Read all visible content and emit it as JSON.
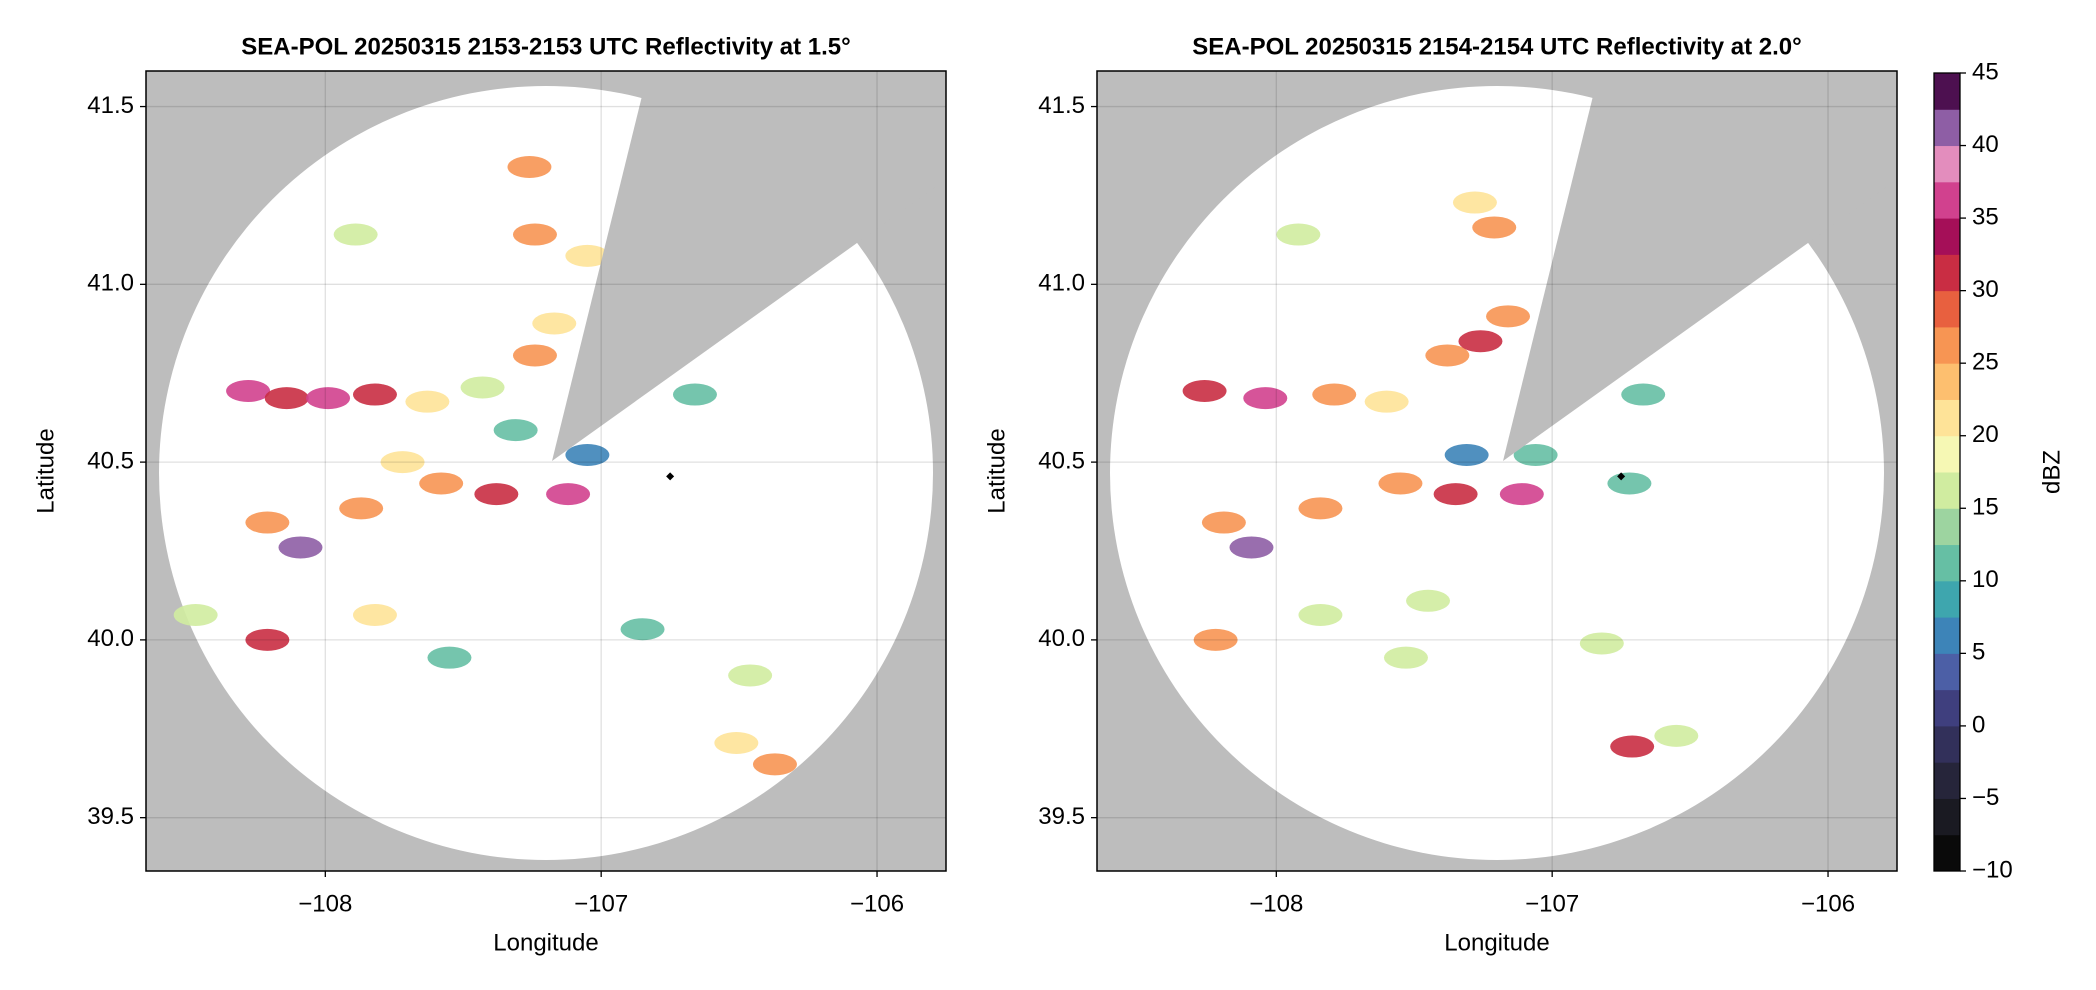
{
  "chart_data": [
    {
      "type": "scatter",
      "title": "SEA-POL 20250315 2153-2153 UTC Reflectivity at 1.5°",
      "xlabel": "Longitude",
      "ylabel": "Latitude",
      "xlim": [
        -108.65,
        -105.75
      ],
      "ylim": [
        39.35,
        41.6
      ],
      "xticks": [
        {
          "value": -108,
          "label": "−108"
        },
        {
          "value": -107,
          "label": "−107"
        },
        {
          "value": -106,
          "label": "−106"
        }
      ],
      "yticks": [
        39.5,
        {
          "value": 40,
          "label": "40.0"
        },
        40.5,
        {
          "value": 41,
          "label": "41.0"
        },
        41.5
      ],
      "grid": true,
      "x": [
        -108.28,
        -108.14,
        -107.99,
        -107.82,
        -107.63,
        -107.43,
        -107.24,
        -107.17,
        -107.24,
        -107.26,
        -107.05,
        -107.89,
        -108.09,
        -108.21,
        -107.87,
        -107.58,
        -107.38,
        -107.72,
        -107.12,
        -107.05,
        -107.31,
        -107.82,
        -108.21,
        -106.51,
        -106.37,
        -106.46,
        -106.85,
        -106.66,
        -107.55,
        -108.47
      ],
      "y": [
        40.7,
        40.68,
        40.68,
        40.69,
        40.67,
        40.71,
        40.8,
        40.89,
        41.14,
        41.33,
        41.08,
        41.14,
        40.26,
        40.33,
        40.37,
        40.44,
        40.41,
        40.5,
        40.41,
        40.52,
        40.59,
        40.07,
        40.0,
        39.71,
        39.65,
        39.9,
        40.03,
        40.69,
        39.95,
        40.07
      ],
      "values": [
        35,
        30,
        35,
        30,
        20,
        15,
        25,
        20,
        25,
        25,
        20,
        15,
        40,
        25,
        25,
        25,
        30,
        20,
        35,
        5,
        10,
        20,
        30,
        20,
        25,
        15,
        10,
        10,
        12,
        15
      ],
      "markers": {
        "x": [
          -106.75
        ],
        "y": [
          40.46
        ]
      }
    },
    {
      "type": "scatter",
      "title": "SEA-POL 20250315 2154-2154 UTC Reflectivity at 2.0°",
      "xlabel": "Longitude",
      "ylabel": "Latitude",
      "xlim": [
        -108.65,
        -105.75
      ],
      "ylim": [
        39.35,
        41.6
      ],
      "xticks": [
        {
          "value": -108,
          "label": "−108"
        },
        {
          "value": -107,
          "label": "−107"
        },
        {
          "value": -106,
          "label": "−106"
        }
      ],
      "yticks": [
        39.5,
        {
          "value": 40,
          "label": "40.0"
        },
        40.5,
        {
          "value": 41,
          "label": "41.0"
        },
        41.5
      ],
      "grid": true,
      "x": [
        -108.26,
        -108.04,
        -107.79,
        -107.6,
        -107.38,
        -107.26,
        -107.16,
        -107.28,
        -107.21,
        -107.92,
        -108.09,
        -108.19,
        -107.84,
        -107.55,
        -107.35,
        -107.11,
        -107.06,
        -107.31,
        -107.53,
        -107.84,
        -107.45,
        -106.82,
        -106.55,
        -106.71,
        -106.72,
        -106.67,
        -108.22
      ],
      "y": [
        40.7,
        40.68,
        40.69,
        40.67,
        40.8,
        40.84,
        40.91,
        41.23,
        41.16,
        41.14,
        40.26,
        40.33,
        40.37,
        40.44,
        40.41,
        40.41,
        40.52,
        40.52,
        39.95,
        40.07,
        40.11,
        39.99,
        39.73,
        39.7,
        40.44,
        40.69,
        40.0
      ],
      "values": [
        30,
        35,
        25,
        20,
        25,
        30,
        25,
        20,
        25,
        15,
        40,
        25,
        25,
        25,
        30,
        35,
        10,
        5,
        15,
        15,
        15,
        15,
        15,
        30,
        10,
        12,
        25
      ],
      "markers": {
        "x": [
          -106.75
        ],
        "y": [
          40.46
        ]
      }
    },
    {
      "type": "colorbar",
      "ylabel": "dBZ",
      "ylim": [
        -10,
        45
      ],
      "yticks": [
        {
          "value": -10,
          "label": "−10"
        },
        {
          "value": -5,
          "label": "−5"
        },
        0,
        5,
        10,
        15,
        20,
        25,
        30,
        35,
        40,
        45
      ],
      "colors": [
        "#0a0a0a",
        "#1a1a22",
        "#26253a",
        "#32305a",
        "#3f3f7e",
        "#4c5fa6",
        "#3d84b8",
        "#3ea6ae",
        "#66bfa4",
        "#9dd4a0",
        "#d0eca0",
        "#f6f8b4",
        "#fee398",
        "#fdbf6f",
        "#f79553",
        "#e8603f",
        "#c92d43",
        "#a50f58",
        "#d1418e",
        "#e38dbd",
        "#8e5ea5",
        "#4d1050"
      ]
    }
  ]
}
